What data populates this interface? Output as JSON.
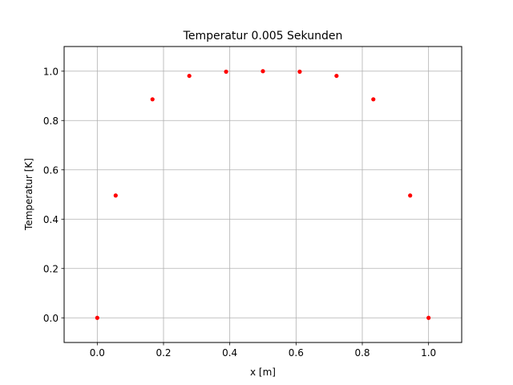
{
  "chart_data": {
    "type": "scatter",
    "title": "Temperatur 0.005 Sekunden",
    "xlabel": "x [m]",
    "ylabel": "Temperatur [K]",
    "xlim": [
      -0.1,
      1.1
    ],
    "ylim": [
      -0.1,
      1.1
    ],
    "xticks": [
      0.0,
      0.2,
      0.4,
      0.6,
      0.8,
      1.0
    ],
    "xtick_labels": [
      "0.0",
      "0.2",
      "0.4",
      "0.6",
      "0.8",
      "1.0"
    ],
    "yticks": [
      0.0,
      0.2,
      0.4,
      0.6,
      0.8,
      1.0
    ],
    "ytick_labels": [
      "0.0",
      "0.2",
      "0.4",
      "0.6",
      "0.8",
      "1.0"
    ],
    "grid": true,
    "marker_color": "#ff0000",
    "series": [
      {
        "x": [
          0.0,
          0.0556,
          0.1667,
          0.2778,
          0.3889,
          0.5,
          0.6111,
          0.7222,
          0.8333,
          0.9444,
          1.0
        ],
        "y": [
          0.0,
          0.496,
          0.886,
          0.981,
          0.998,
          1.0,
          0.998,
          0.981,
          0.886,
          0.496,
          0.0
        ]
      }
    ]
  }
}
